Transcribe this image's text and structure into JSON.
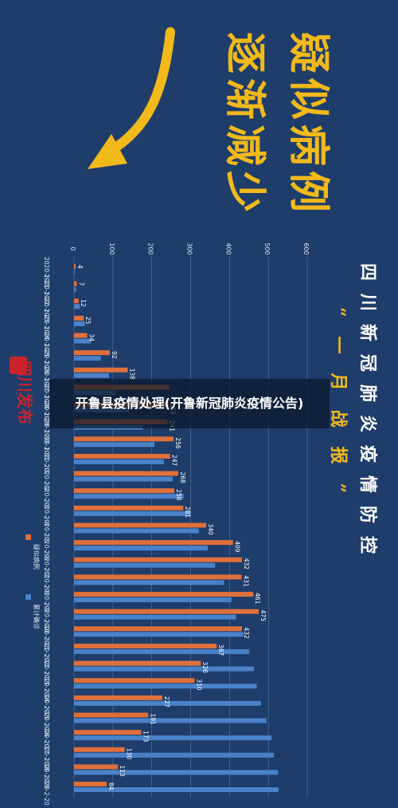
{
  "page": {
    "overlay_title": "开鲁县疫情处理(开鲁新冠肺炎疫情公告)"
  },
  "poster": {
    "headline_line1": "疑似病例",
    "headline_line2": "逐渐减少",
    "right_title": "四川新冠肺炎疫情防控",
    "right_subtitle": "“一月战报”",
    "logo_text": "四川发布",
    "colors": {
      "background": "#1e3d6b",
      "headline": "#f2b91a",
      "arrow": "#f2b91a",
      "suspected": "#e0703a",
      "cumulative": "#4a82c8"
    }
  },
  "chart_data": {
    "type": "bar",
    "orientation": "horizontal",
    "rotated": true,
    "title": "",
    "ylim": [
      0,
      600
    ],
    "axis_ticks": [
      0,
      100,
      200,
      300,
      400,
      500,
      600
    ],
    "grid": true,
    "legend_placement": "bottom",
    "categories": [
      "2020-1-21",
      "2020-1-22",
      "2020-1-23",
      "2020-1-24",
      "2020-1-25",
      "2020-1-26",
      "2020-1-27",
      "2020-1-28",
      "2020-1-29",
      "2020-1-30",
      "2020-1-31",
      "2020-2-1",
      "2020-2-2",
      "2020-2-3",
      "2020-2-4",
      "2020-2-5",
      "2020-2-6",
      "2020-2-7",
      "2020-2-8",
      "2020-2-9",
      "2020-2-10",
      "2020-2-11",
      "2020-2-12",
      "2020-2-13",
      "2020-2-14",
      "2020-2-15",
      "2020-2-16",
      "2020-2-17",
      "2020-2-18",
      "2020-2-19",
      "2020-2-20"
    ],
    "series": [
      {
        "name": "疑似病例",
        "color": "#e0703a",
        "values": [
          4,
          7,
          12,
          25,
          34,
          92,
          138,
          245,
          243,
          241,
          256,
          247,
          268,
          258,
          281,
          340,
          409,
          432,
          431,
          461,
          475,
          432,
          367,
          326,
          310,
          227,
          191,
          173,
          130,
          113,
          84
        ],
        "labels": [
          "4",
          "7",
          "12",
          "25",
          "34",
          "92",
          "138",
          "",
          "243",
          "241",
          "256",
          "247",
          "268",
          "258",
          "281",
          "340",
          "409",
          "432",
          "431",
          "461",
          "475",
          "432",
          "367",
          "326",
          "310",
          "227",
          "191",
          "173",
          "130",
          "113",
          "84"
        ]
      },
      {
        "name": "累计确诊",
        "color": "#4a82c8",
        "values": [
          2,
          5,
          15,
          28,
          44,
          69,
          90,
          108,
          142,
          177,
          207,
          231,
          254,
          282,
          301,
          321,
          344,
          363,
          386,
          405,
          417,
          436,
          451,
          463,
          470,
          481,
          495,
          508,
          514,
          525,
          526
        ],
        "labels": []
      }
    ]
  }
}
